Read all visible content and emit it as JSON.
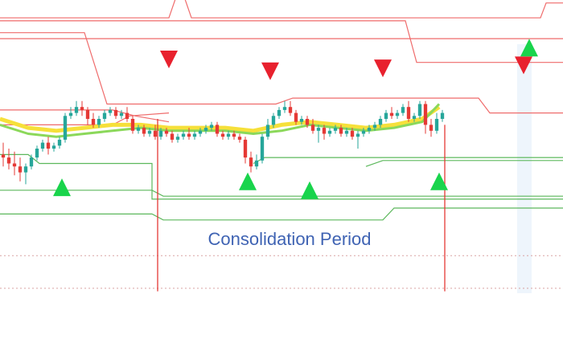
{
  "chart_data": {
    "type": "candlestick",
    "annotation": "Consolidation Period",
    "x_range": [
      0,
      100
    ],
    "y_range": [
      0,
      100
    ],
    "colors": {
      "bull": "#26a69a",
      "bear": "#e53935",
      "ma_fast": "#f6e03a",
      "ma_slow": "#8bd85a",
      "resistance": "#ef6b6b",
      "support": "#5cb85c",
      "sell_marker": "#e8212e",
      "buy_marker": "#19d44c",
      "annotation": "#3f63b3",
      "dotted": "#d9a3a3"
    },
    "candles": [
      {
        "t": 0,
        "o": 48,
        "h": 52,
        "c": 47,
        "l": 44
      },
      {
        "t": 1,
        "o": 47,
        "h": 50,
        "c": 45,
        "l": 43
      },
      {
        "t": 2,
        "o": 45,
        "h": 49,
        "c": 44,
        "l": 41
      },
      {
        "t": 3,
        "o": 44,
        "h": 47,
        "c": 42,
        "l": 39
      },
      {
        "t": 4,
        "o": 42,
        "h": 45,
        "c": 44,
        "l": 38
      },
      {
        "t": 5,
        "o": 44,
        "h": 48,
        "c": 47,
        "l": 43
      },
      {
        "t": 6,
        "o": 47,
        "h": 51,
        "c": 50,
        "l": 46
      },
      {
        "t": 7,
        "o": 50,
        "h": 53,
        "c": 52,
        "l": 49
      },
      {
        "t": 8,
        "o": 52,
        "h": 54,
        "c": 50,
        "l": 48
      },
      {
        "t": 9,
        "o": 50,
        "h": 52,
        "c": 51,
        "l": 49
      },
      {
        "t": 10,
        "o": 51,
        "h": 54,
        "c": 53,
        "l": 50
      },
      {
        "t": 11,
        "o": 53,
        "h": 62,
        "c": 61,
        "l": 52
      },
      {
        "t": 12,
        "o": 61,
        "h": 64,
        "c": 62,
        "l": 60
      },
      {
        "t": 13,
        "o": 62,
        "h": 66,
        "c": 64,
        "l": 61
      },
      {
        "t": 14,
        "o": 64,
        "h": 66,
        "c": 63,
        "l": 61
      },
      {
        "t": 15,
        "o": 63,
        "h": 64,
        "c": 60,
        "l": 58
      },
      {
        "t": 16,
        "o": 60,
        "h": 62,
        "c": 58,
        "l": 57
      },
      {
        "t": 17,
        "o": 58,
        "h": 61,
        "c": 60,
        "l": 57
      },
      {
        "t": 18,
        "o": 60,
        "h": 63,
        "c": 62,
        "l": 59
      },
      {
        "t": 19,
        "o": 62,
        "h": 64,
        "c": 63,
        "l": 61
      },
      {
        "t": 20,
        "o": 63,
        "h": 64,
        "c": 61,
        "l": 60
      },
      {
        "t": 21,
        "o": 61,
        "h": 63,
        "c": 62,
        "l": 60
      },
      {
        "t": 22,
        "o": 62,
        "h": 64,
        "c": 60,
        "l": 59
      },
      {
        "t": 23,
        "o": 60,
        "h": 61,
        "c": 56,
        "l": 55
      },
      {
        "t": 24,
        "o": 56,
        "h": 58,
        "c": 57,
        "l": 55
      },
      {
        "t": 25,
        "o": 57,
        "h": 58,
        "c": 55,
        "l": 54
      },
      {
        "t": 26,
        "o": 55,
        "h": 57,
        "c": 56,
        "l": 54
      },
      {
        "t": 27,
        "o": 56,
        "h": 58,
        "c": 54,
        "l": 53
      },
      {
        "t": 28,
        "o": 54,
        "h": 57,
        "c": 56,
        "l": 53
      },
      {
        "t": 29,
        "o": 56,
        "h": 57,
        "c": 55,
        "l": 54
      },
      {
        "t": 30,
        "o": 55,
        "h": 56,
        "c": 53,
        "l": 52
      },
      {
        "t": 31,
        "o": 53,
        "h": 55,
        "c": 54,
        "l": 52
      },
      {
        "t": 32,
        "o": 54,
        "h": 56,
        "c": 55,
        "l": 53
      },
      {
        "t": 33,
        "o": 55,
        "h": 57,
        "c": 54,
        "l": 53
      },
      {
        "t": 34,
        "o": 54,
        "h": 56,
        "c": 55,
        "l": 53
      },
      {
        "t": 35,
        "o": 55,
        "h": 57,
        "c": 56,
        "l": 54
      },
      {
        "t": 36,
        "o": 56,
        "h": 58,
        "c": 57,
        "l": 55
      },
      {
        "t": 37,
        "o": 57,
        "h": 59,
        "c": 58,
        "l": 56
      },
      {
        "t": 38,
        "o": 58,
        "h": 59,
        "c": 55,
        "l": 54
      },
      {
        "t": 39,
        "o": 55,
        "h": 56,
        "c": 54,
        "l": 53
      },
      {
        "t": 40,
        "o": 54,
        "h": 56,
        "c": 55,
        "l": 53
      },
      {
        "t": 41,
        "o": 55,
        "h": 56,
        "c": 54,
        "l": 53
      },
      {
        "t": 42,
        "o": 54,
        "h": 55,
        "c": 53,
        "l": 52
      },
      {
        "t": 43,
        "o": 53,
        "h": 54,
        "c": 47,
        "l": 45
      },
      {
        "t": 44,
        "o": 47,
        "h": 49,
        "c": 44,
        "l": 42
      },
      {
        "t": 45,
        "o": 44,
        "h": 48,
        "c": 46,
        "l": 43
      },
      {
        "t": 46,
        "o": 46,
        "h": 55,
        "c": 54,
        "l": 45
      },
      {
        "t": 47,
        "o": 54,
        "h": 60,
        "c": 58,
        "l": 53
      },
      {
        "t": 48,
        "o": 58,
        "h": 62,
        "c": 61,
        "l": 57
      },
      {
        "t": 49,
        "o": 61,
        "h": 64,
        "c": 63,
        "l": 60
      },
      {
        "t": 50,
        "o": 63,
        "h": 66,
        "c": 64,
        "l": 62
      },
      {
        "t": 51,
        "o": 64,
        "h": 66,
        "c": 62,
        "l": 61
      },
      {
        "t": 52,
        "o": 62,
        "h": 63,
        "c": 59,
        "l": 58
      },
      {
        "t": 53,
        "o": 59,
        "h": 61,
        "c": 60,
        "l": 58
      },
      {
        "t": 54,
        "o": 60,
        "h": 61,
        "c": 58,
        "l": 57
      },
      {
        "t": 55,
        "o": 58,
        "h": 60,
        "c": 56,
        "l": 55
      },
      {
        "t": 56,
        "o": 56,
        "h": 58,
        "c": 57,
        "l": 52
      },
      {
        "t": 57,
        "o": 57,
        "h": 58,
        "c": 55,
        "l": 53
      },
      {
        "t": 58,
        "o": 55,
        "h": 57,
        "c": 56,
        "l": 54
      },
      {
        "t": 59,
        "o": 56,
        "h": 58,
        "c": 57,
        "l": 55
      },
      {
        "t": 60,
        "o": 57,
        "h": 58,
        "c": 55,
        "l": 54
      },
      {
        "t": 61,
        "o": 55,
        "h": 57,
        "c": 56,
        "l": 54
      },
      {
        "t": 62,
        "o": 56,
        "h": 57,
        "c": 54,
        "l": 53
      },
      {
        "t": 63,
        "o": 54,
        "h": 56,
        "c": 55,
        "l": 50
      },
      {
        "t": 64,
        "o": 55,
        "h": 57,
        "c": 56,
        "l": 54
      },
      {
        "t": 65,
        "o": 56,
        "h": 58,
        "c": 57,
        "l": 55
      },
      {
        "t": 66,
        "o": 57,
        "h": 59,
        "c": 58,
        "l": 56
      },
      {
        "t": 67,
        "o": 58,
        "h": 61,
        "c": 60,
        "l": 57
      },
      {
        "t": 68,
        "o": 60,
        "h": 63,
        "c": 62,
        "l": 59
      },
      {
        "t": 69,
        "o": 62,
        "h": 64,
        "c": 61,
        "l": 60
      },
      {
        "t": 70,
        "o": 61,
        "h": 63,
        "c": 62,
        "l": 60
      },
      {
        "t": 71,
        "o": 62,
        "h": 65,
        "c": 64,
        "l": 61
      },
      {
        "t": 72,
        "o": 64,
        "h": 66,
        "c": 60,
        "l": 59
      },
      {
        "t": 73,
        "o": 60,
        "h": 62,
        "c": 61,
        "l": 59
      },
      {
        "t": 74,
        "o": 61,
        "h": 66,
        "c": 65,
        "l": 60
      },
      {
        "t": 75,
        "o": 65,
        "h": 66,
        "c": 58,
        "l": 55
      },
      {
        "t": 76,
        "o": 58,
        "h": 60,
        "c": 56,
        "l": 54
      },
      {
        "t": 77,
        "o": 56,
        "h": 62,
        "c": 60,
        "l": 55
      },
      {
        "t": 78,
        "o": 60,
        "h": 63,
        "c": 62,
        "l": 59
      }
    ],
    "ma_fast": [
      [
        0,
        60
      ],
      [
        5,
        57
      ],
      [
        10,
        56
      ],
      [
        15,
        57
      ],
      [
        20,
        58
      ],
      [
        25,
        58
      ],
      [
        30,
        57
      ],
      [
        35,
        57
      ],
      [
        40,
        57
      ],
      [
        45,
        56
      ],
      [
        50,
        58
      ],
      [
        55,
        59
      ],
      [
        60,
        58
      ],
      [
        65,
        57
      ],
      [
        70,
        58
      ],
      [
        75,
        60
      ],
      [
        78,
        64
      ]
    ],
    "ma_slow": [
      [
        0,
        58
      ],
      [
        5,
        55
      ],
      [
        10,
        54
      ],
      [
        15,
        55
      ],
      [
        20,
        56
      ],
      [
        25,
        57
      ],
      [
        30,
        56
      ],
      [
        35,
        56
      ],
      [
        40,
        56
      ],
      [
        45,
        55
      ],
      [
        50,
        56
      ],
      [
        55,
        58
      ],
      [
        60,
        57
      ],
      [
        65,
        56
      ],
      [
        70,
        57
      ],
      [
        75,
        59
      ],
      [
        78,
        65
      ]
    ],
    "resistance_lines": [
      [
        [
          -1,
          94
        ],
        [
          30,
          94
        ],
        [
          32,
          105
        ],
        [
          34,
          94
        ],
        [
          96,
          94
        ],
        [
          97,
          99
        ],
        [
          100,
          99
        ]
      ],
      [
        [
          -1,
          93
        ],
        [
          35,
          93
        ],
        [
          72,
          93
        ],
        [
          74,
          79
        ],
        [
          100,
          79
        ]
      ],
      [
        [
          -1,
          89
        ],
        [
          15,
          89
        ],
        [
          19,
          65
        ],
        [
          49,
          65
        ],
        [
          52,
          67
        ],
        [
          85,
          67
        ],
        [
          87,
          62
        ],
        [
          100,
          62
        ]
      ],
      [
        [
          -1,
          87
        ],
        [
          90,
          87
        ],
        [
          100,
          87
        ]
      ],
      [
        [
          -1,
          63
        ],
        [
          20,
          63
        ],
        [
          24,
          61
        ],
        [
          30,
          59
        ]
      ],
      [
        [
          -1,
          58
        ],
        [
          20,
          58
        ],
        [
          23,
          61
        ],
        [
          30,
          62
        ]
      ]
    ],
    "support_lines": [
      [
        [
          0,
          48
        ],
        [
          5,
          48
        ],
        [
          7,
          45
        ],
        [
          27,
          45
        ],
        [
          27,
          33
        ],
        [
          100,
          33
        ]
      ],
      [
        [
          0,
          36
        ],
        [
          7,
          36
        ],
        [
          27,
          36
        ],
        [
          29,
          34
        ],
        [
          100,
          34
        ]
      ],
      [
        [
          0,
          28
        ],
        [
          27,
          28
        ],
        [
          29,
          26
        ],
        [
          68,
          26
        ],
        [
          70,
          30
        ],
        [
          100,
          30
        ]
      ],
      [
        [
          45,
          45
        ],
        [
          47,
          47
        ],
        [
          100,
          47
        ]
      ],
      [
        [
          65,
          44
        ],
        [
          68,
          46
        ],
        [
          100,
          46
        ]
      ]
    ],
    "sell_markers": [
      [
        30,
        80
      ],
      [
        48,
        76
      ],
      [
        68,
        77
      ],
      [
        93,
        78
      ]
    ],
    "buy_markers": [
      [
        11,
        37
      ],
      [
        44,
        39
      ],
      [
        55,
        36
      ],
      [
        78,
        39
      ],
      [
        94,
        84
      ]
    ],
    "dotted_lines": [
      14,
      3
    ]
  }
}
